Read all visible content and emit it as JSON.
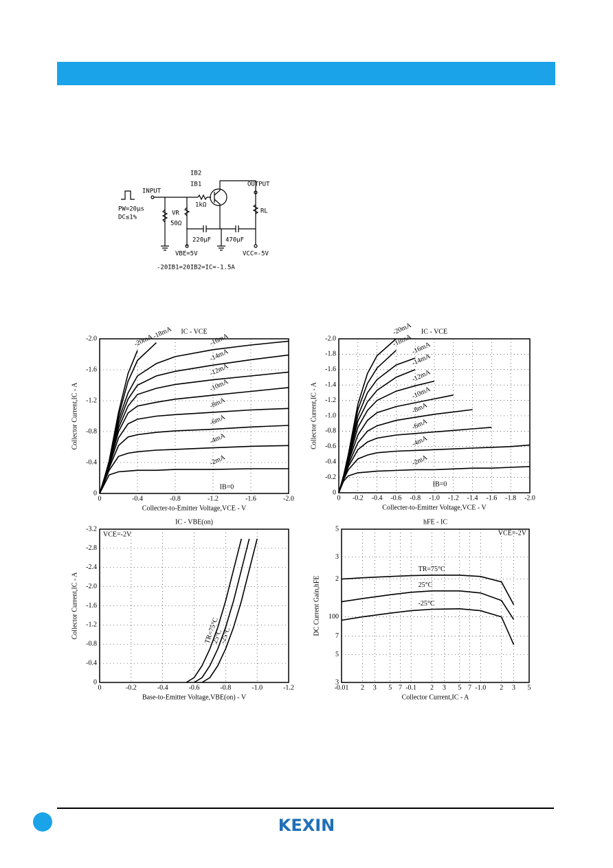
{
  "circuit": {
    "ib2": "IB2",
    "ib1": "IB1",
    "input": "INPUT",
    "output": "OUTPUT",
    "pw": "PW=20μs",
    "dc": "DC≤1%",
    "vr": "VR",
    "r50": "50Ω",
    "r1k": "1kΩ",
    "rl": "RL",
    "c1": "220μF",
    "c2": "470μF",
    "vbe": "VBE=5V",
    "vcc": "VCC=-5V",
    "equation": "-20IB1=20IB2=IC=-1.5A"
  },
  "logo": "KEXIN",
  "chart_data": [
    {
      "type": "line",
      "title": "IC - VCE",
      "x_label": "Collecter-to-Emitter Voltage,VCE - V",
      "y_label": "Collector Current,IC - A",
      "annotation": "IB=0",
      "color": "#000",
      "grid": true,
      "xlim": [
        0,
        -2
      ],
      "ylim": [
        0,
        -2
      ],
      "xticks": [
        0,
        -0.4,
        -0.8,
        -1.2,
        -1.6,
        {
          "value": -2,
          "label": "-2.0"
        }
      ],
      "yticks": [
        0,
        -0.4,
        -0.8,
        -1.2,
        -1.6,
        {
          "value": -2,
          "label": "-2.0"
        }
      ],
      "x": [
        0,
        -0.05,
        -0.1,
        -0.2,
        -0.3,
        -0.4,
        -0.6,
        -0.8,
        -1.2,
        -1.6,
        -2.0
      ],
      "series": [
        {
          "name": "-2mA",
          "values": [
            0,
            -0.12,
            -0.24,
            -0.28,
            -0.29,
            -0.3,
            -0.3,
            -0.31,
            -0.31,
            -0.32,
            -0.32
          ]
        },
        {
          "name": "-4mA",
          "values": [
            0,
            -0.15,
            -0.3,
            -0.48,
            -0.52,
            -0.54,
            -0.56,
            -0.57,
            -0.59,
            -0.61,
            -0.62
          ]
        },
        {
          "name": "-6mA",
          "values": [
            0,
            -0.16,
            -0.33,
            -0.62,
            -0.73,
            -0.76,
            -0.79,
            -0.81,
            -0.83,
            -0.86,
            -0.88
          ]
        },
        {
          "name": "-8mA",
          "values": [
            0,
            -0.17,
            -0.35,
            -0.72,
            -0.9,
            -0.96,
            -1.0,
            -1.02,
            -1.05,
            -1.08,
            -1.1
          ]
        },
        {
          "name": "-10mA",
          "values": [
            0,
            -0.18,
            -0.37,
            -0.8,
            -1.04,
            -1.13,
            -1.18,
            -1.22,
            -1.27,
            -1.32,
            -1.37
          ]
        },
        {
          "name": "-12mA",
          "values": [
            0,
            -0.18,
            -0.38,
            -0.85,
            -1.13,
            -1.28,
            -1.36,
            -1.41,
            -1.47,
            -1.52,
            -1.57
          ]
        },
        {
          "name": "-14mA",
          "values": [
            0,
            -0.19,
            -0.39,
            -0.9,
            -1.22,
            -1.4,
            -1.52,
            -1.58,
            -1.66,
            -1.73,
            -1.79
          ]
        },
        {
          "name": "-16mA",
          "values": [
            0,
            -0.19,
            -0.4,
            -0.95,
            -1.3,
            -1.52,
            -1.68,
            -1.77,
            -1.86,
            -1.92,
            -1.97
          ]
        },
        {
          "name": "-18mA",
          "values": [
            0,
            -0.2,
            -0.41,
            -1.0,
            -1.45,
            -1.72,
            -1.95,
            null,
            null,
            null,
            null
          ]
        },
        {
          "name": "-20mA",
          "values": [
            0,
            -0.2,
            -0.42,
            -1.05,
            -1.55,
            -1.85,
            null,
            null,
            null,
            null,
            null
          ]
        }
      ]
    },
    {
      "type": "line",
      "title": "IC - VCE",
      "x_label": "Collecter-to-Emitter Voltage,VCE - V",
      "y_label": "Collector Current,IC - A",
      "annotation": "IB=0",
      "color": "#000",
      "grid": true,
      "xlim": [
        0,
        -2
      ],
      "ylim": [
        0,
        -2
      ],
      "xticks": [
        0,
        -0.2,
        -0.4,
        -0.6,
        -0.8,
        {
          "value": -1,
          "label": "-1.0"
        },
        -1.2,
        -1.4,
        -1.6,
        -1.8,
        {
          "value": -2,
          "label": "-2.0"
        }
      ],
      "yticks": [
        0,
        -0.2,
        -0.4,
        -0.6,
        -0.8,
        {
          "value": -1,
          "label": "-1.0"
        },
        -1.2,
        -1.4,
        -1.6,
        -1.8,
        {
          "value": -2,
          "label": "-2.0"
        }
      ],
      "x": [
        0,
        -0.05,
        -0.1,
        -0.2,
        -0.3,
        -0.4,
        -0.6,
        -0.8,
        -1.0,
        -1.2,
        -1.4,
        -1.6,
        -1.8,
        -2.0
      ],
      "series": [
        {
          "name": "-2mA",
          "values": [
            0,
            -0.15,
            -0.22,
            -0.26,
            -0.27,
            -0.28,
            -0.29,
            -0.3,
            -0.3,
            -0.31,
            -0.32,
            -0.32,
            -0.33,
            -0.34
          ]
        },
        {
          "name": "-4mA",
          "values": [
            0,
            -0.17,
            -0.3,
            -0.44,
            -0.49,
            -0.52,
            -0.54,
            -0.55,
            -0.56,
            -0.57,
            -0.58,
            -0.59,
            -0.6,
            -0.62
          ]
        },
        {
          "name": "-6mA",
          "values": [
            0,
            -0.18,
            -0.34,
            -0.56,
            -0.66,
            -0.71,
            -0.75,
            -0.77,
            -0.79,
            -0.81,
            -0.83,
            -0.85,
            null,
            null
          ]
        },
        {
          "name": "-8mA",
          "values": [
            0,
            -0.19,
            -0.37,
            -0.65,
            -0.8,
            -0.87,
            -0.94,
            -0.98,
            -1.02,
            -1.05,
            -1.08,
            null,
            null,
            null
          ]
        },
        {
          "name": "-10mA",
          "values": [
            0,
            -0.2,
            -0.4,
            -0.75,
            -0.94,
            -1.04,
            -1.12,
            -1.17,
            -1.22,
            -1.27,
            null,
            null,
            null,
            null
          ]
        },
        {
          "name": "-12mA",
          "values": [
            0,
            -0.2,
            -0.42,
            -0.85,
            -1.07,
            -1.2,
            -1.32,
            -1.39,
            -1.45,
            null,
            null,
            null,
            null,
            null
          ]
        },
        {
          "name": "-14mA",
          "values": [
            0,
            -0.21,
            -0.44,
            -0.93,
            -1.18,
            -1.33,
            -1.5,
            -1.6,
            null,
            null,
            null,
            null,
            null,
            null
          ]
        },
        {
          "name": "-16mA",
          "values": [
            0,
            -0.21,
            -0.46,
            -1.0,
            -1.3,
            -1.47,
            -1.66,
            -1.75,
            null,
            null,
            null,
            null,
            null,
            null
          ]
        },
        {
          "name": "-18mA",
          "values": [
            0,
            -0.22,
            -0.48,
            -1.08,
            -1.42,
            -1.62,
            -1.85,
            null,
            null,
            null,
            null,
            null,
            null,
            null
          ]
        },
        {
          "name": "-20mA",
          "values": [
            0,
            -0.22,
            -0.5,
            -1.15,
            -1.55,
            -1.78,
            -2.0,
            null,
            null,
            null,
            null,
            null,
            null,
            null
          ]
        }
      ]
    },
    {
      "type": "line",
      "title": "IC - VBE(on)",
      "x_label": "Base-to-Emitter Voltage,VBE(on) - V",
      "y_label": "Collector Current,IC - A",
      "annotation": "VCE=-2V",
      "color": "#000",
      "grid": true,
      "xlim": [
        0,
        -1.2
      ],
      "ylim": [
        0,
        -3.2
      ],
      "xticks": [
        0,
        -0.2,
        -0.4,
        -0.6,
        -0.8,
        {
          "value": -1,
          "label": "-1.0"
        },
        -1.2
      ],
      "yticks": [
        0,
        -0.4,
        -0.8,
        -1.2,
        -1.6,
        {
          "value": -2,
          "label": "-2.0"
        },
        -2.4,
        -2.8,
        -3.2
      ],
      "series": [
        {
          "name": "TR=75°C",
          "x": [
            -0.55,
            -0.6,
            -0.65,
            -0.7,
            -0.75,
            -0.8,
            -0.85,
            -0.9
          ],
          "values": [
            0,
            -0.1,
            -0.35,
            -0.7,
            -1.15,
            -1.7,
            -2.35,
            -3.0
          ]
        },
        {
          "name": "25°C",
          "x": [
            -0.6,
            -0.65,
            -0.7,
            -0.75,
            -0.8,
            -0.85,
            -0.9,
            -0.95
          ],
          "values": [
            0,
            -0.1,
            -0.35,
            -0.7,
            -1.15,
            -1.7,
            -2.35,
            -3.0
          ]
        },
        {
          "name": "-25°C",
          "x": [
            -0.65,
            -0.7,
            -0.75,
            -0.8,
            -0.85,
            -0.9,
            -0.95,
            -1.0
          ],
          "values": [
            0,
            -0.1,
            -0.35,
            -0.7,
            -1.15,
            -1.7,
            -2.35,
            -3.0
          ]
        }
      ]
    },
    {
      "type": "line",
      "title": "hFE - IC",
      "x_label": "Collector Current,IC - A",
      "y_label": "DC Current Gain,hFE",
      "annotation": "VCE=-2V",
      "color": "#000",
      "grid": true,
      "log_x": true,
      "log_y": true,
      "xlim": [
        0.01,
        5
      ],
      "ylim": [
        30,
        500
      ],
      "xticks": [
        {
          "value": 0.01,
          "label": "-0.01"
        },
        {
          "value": 0.02,
          "label": "2"
        },
        {
          "value": 0.03,
          "label": "3"
        },
        {
          "value": 0.05,
          "label": "5"
        },
        {
          "value": 0.07,
          "label": "7"
        },
        {
          "value": 0.1,
          "label": "-0.1"
        },
        {
          "value": 0.2,
          "label": "2"
        },
        {
          "value": 0.3,
          "label": "3"
        },
        {
          "value": 0.5,
          "label": "5"
        },
        {
          "value": 0.7,
          "label": "7"
        },
        {
          "value": 1,
          "label": "-1.0"
        },
        {
          "value": 2,
          "label": "2"
        },
        {
          "value": 3,
          "label": "3"
        },
        {
          "value": 5,
          "label": "5"
        }
      ],
      "yticks": [
        {
          "value": 30,
          "label": "3"
        },
        {
          "value": 50,
          "label": "5"
        },
        {
          "value": 70,
          "label": "7"
        },
        100,
        {
          "value": 200,
          "label": "2"
        },
        {
          "value": 300,
          "label": "3"
        },
        {
          "value": 500,
          "label": "5"
        }
      ],
      "x": [
        0.01,
        0.02,
        0.05,
        0.1,
        0.2,
        0.5,
        1.0,
        2.0,
        3.0
      ],
      "series": [
        {
          "name": "TR=75°C",
          "values": [
            200,
            205,
            210,
            213,
            215,
            215,
            210,
            190,
            125
          ]
        },
        {
          "name": "25°C",
          "values": [
            132,
            140,
            150,
            157,
            161,
            161,
            155,
            135,
            95
          ]
        },
        {
          "name": "-25°C",
          "values": [
            94,
            100,
            107,
            112,
            115,
            116,
            112,
            100,
            60
          ]
        }
      ]
    }
  ]
}
